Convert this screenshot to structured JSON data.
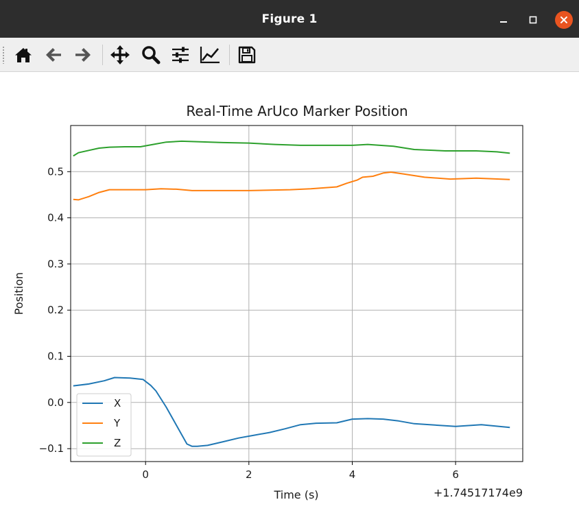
{
  "window": {
    "title": "Figure 1"
  },
  "toolbar": {
    "buttons": [
      {
        "name": "home",
        "icon": "home-icon"
      },
      {
        "name": "back",
        "icon": "arrow-left-icon"
      },
      {
        "name": "forward",
        "icon": "arrow-right-icon"
      },
      {
        "name": "pan",
        "icon": "move-icon"
      },
      {
        "name": "zoom",
        "icon": "magnifier-icon"
      },
      {
        "name": "configure-subplots",
        "icon": "sliders-icon"
      },
      {
        "name": "edit-axis",
        "icon": "line-chart-icon"
      },
      {
        "name": "save",
        "icon": "floppy-disk-icon"
      }
    ]
  },
  "chart_data": {
    "type": "line",
    "title": "Real-Time ArUco Marker Position",
    "xlabel": "Time (s)",
    "ylabel": "Position",
    "x_offset_label": "+1.74517174e9",
    "xlim": [
      -1.45,
      7.3
    ],
    "ylim": [
      -0.128,
      0.6
    ],
    "xticks": [
      0,
      2,
      4,
      6
    ],
    "yticks": [
      -0.1,
      0.0,
      0.1,
      0.2,
      0.3,
      0.4,
      0.5
    ],
    "xtick_labels": [
      "0",
      "2",
      "4",
      "6"
    ],
    "ytick_labels": [
      "−0.1",
      "0.0",
      "0.1",
      "0.2",
      "0.3",
      "0.4",
      "0.5"
    ],
    "grid": true,
    "legend_position": "lower-left",
    "series": [
      {
        "name": "X",
        "color": "#1f77b4",
        "x": [
          -1.4,
          -1.1,
          -0.8,
          -0.6,
          -0.3,
          -0.05,
          0.1,
          0.2,
          0.4,
          0.6,
          0.8,
          0.9,
          1.0,
          1.2,
          1.5,
          1.8,
          2.1,
          2.4,
          2.7,
          3.0,
          3.3,
          3.7,
          4.0,
          4.3,
          4.6,
          4.9,
          5.2,
          5.6,
          6.0,
          6.5,
          7.05
        ],
        "y": [
          0.036,
          0.04,
          0.047,
          0.054,
          0.053,
          0.05,
          0.037,
          0.025,
          -0.01,
          -0.05,
          -0.09,
          -0.095,
          -0.095,
          -0.093,
          -0.085,
          -0.077,
          -0.071,
          -0.065,
          -0.057,
          -0.048,
          -0.045,
          -0.044,
          -0.036,
          -0.035,
          -0.036,
          -0.04,
          -0.046,
          -0.049,
          -0.052,
          -0.048,
          -0.054
        ]
      },
      {
        "name": "Y",
        "color": "#ff7f0e",
        "x": [
          -1.4,
          -1.3,
          -1.1,
          -0.9,
          -0.7,
          -0.5,
          -0.2,
          0.0,
          0.3,
          0.6,
          0.9,
          1.2,
          1.6,
          2.0,
          2.4,
          2.8,
          3.2,
          3.7,
          3.9,
          4.1,
          4.2,
          4.4,
          4.6,
          4.75,
          5.0,
          5.4,
          5.9,
          6.4,
          7.05
        ],
        "y": [
          0.44,
          0.439,
          0.446,
          0.455,
          0.461,
          0.461,
          0.461,
          0.461,
          0.463,
          0.462,
          0.459,
          0.459,
          0.459,
          0.459,
          0.46,
          0.461,
          0.463,
          0.467,
          0.475,
          0.482,
          0.488,
          0.49,
          0.497,
          0.499,
          0.495,
          0.488,
          0.484,
          0.486,
          0.483
        ]
      },
      {
        "name": "Z",
        "color": "#2ca02c",
        "x": [
          -1.4,
          -1.3,
          -1.1,
          -0.9,
          -0.7,
          -0.4,
          -0.1,
          0.0,
          0.2,
          0.4,
          0.7,
          1.0,
          1.5,
          2.0,
          2.5,
          3.0,
          3.5,
          4.0,
          4.3,
          4.8,
          5.2,
          5.8,
          6.4,
          6.8,
          7.05
        ],
        "y": [
          0.534,
          0.541,
          0.546,
          0.551,
          0.553,
          0.554,
          0.554,
          0.556,
          0.56,
          0.564,
          0.566,
          0.565,
          0.563,
          0.562,
          0.559,
          0.557,
          0.557,
          0.557,
          0.559,
          0.555,
          0.548,
          0.545,
          0.545,
          0.543,
          0.54
        ]
      }
    ]
  }
}
